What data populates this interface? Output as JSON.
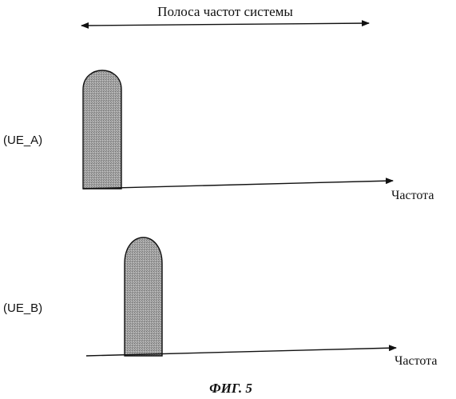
{
  "bandwidth_label": "Полоса частот системы",
  "plots": [
    {
      "ue_label": "(UE_A)",
      "axis_label": "Частота"
    },
    {
      "ue_label": "(UE_B)",
      "axis_label": "Частота"
    }
  ],
  "caption": "ФИГ. 5",
  "colors": {
    "ink": "#111111",
    "pulse_fill": "#9c9c9c",
    "background": "#ffffff"
  }
}
